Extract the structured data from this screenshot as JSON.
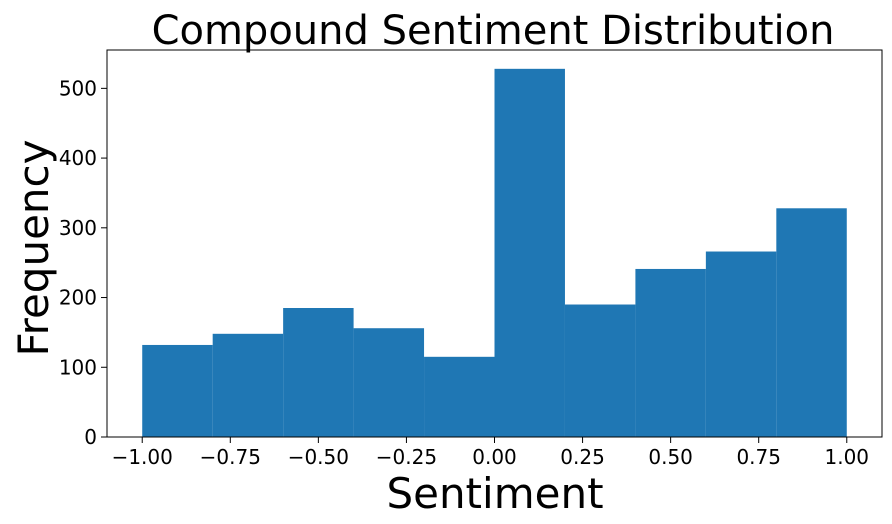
{
  "chart_data": {
    "type": "bar",
    "title": "Compound Sentiment Distribution",
    "xlabel": "Sentiment",
    "ylabel": "Frequency",
    "bins": [
      {
        "start": -1.0,
        "end": -0.8,
        "value": 132
      },
      {
        "start": -0.8,
        "end": -0.6,
        "value": 148
      },
      {
        "start": -0.6,
        "end": -0.4,
        "value": 185
      },
      {
        "start": -0.4,
        "end": -0.2,
        "value": 156
      },
      {
        "start": -0.2,
        "end": 0.0,
        "value": 115
      },
      {
        "start": 0.0,
        "end": 0.2,
        "value": 528
      },
      {
        "start": 0.2,
        "end": 0.4,
        "value": 190
      },
      {
        "start": 0.4,
        "end": 0.6,
        "value": 241
      },
      {
        "start": 0.6,
        "end": 0.8,
        "value": 266
      },
      {
        "start": 0.8,
        "end": 1.0,
        "value": 328
      }
    ],
    "xlim": [
      -1.1,
      1.1
    ],
    "ylim": [
      0,
      555
    ],
    "xticks": [
      "−1.00",
      "−0.75",
      "−0.50",
      "−0.25",
      "0.00",
      "0.25",
      "0.50",
      "0.75",
      "1.00"
    ],
    "xtick_values": [
      -1.0,
      -0.75,
      -0.5,
      -0.25,
      0.0,
      0.25,
      0.5,
      0.75,
      1.0
    ],
    "yticks": [
      "0",
      "100",
      "200",
      "300",
      "400",
      "500"
    ],
    "ytick_values": [
      0,
      100,
      200,
      300,
      400,
      500
    ],
    "bar_color": "#1f77b4",
    "grid": false,
    "legend": "none"
  }
}
